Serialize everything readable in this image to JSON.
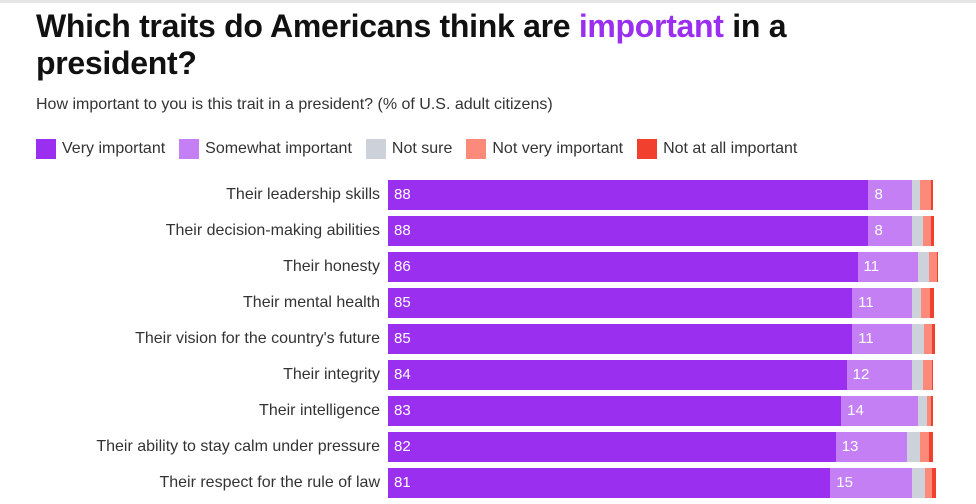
{
  "header": {
    "title_before": "Which traits do Americans think are ",
    "title_highlight": "important",
    "title_after": " in a president?",
    "subtitle": "How important to you is this trait in a president? (% of U.S. adult citizens)"
  },
  "colors": {
    "very_important": "#9b2ff0",
    "somewhat_important": "#c47ff5",
    "not_sure": "#cdd1da",
    "not_very_important": "#fb8a7a",
    "not_at_all_important": "#f2402e",
    "highlight": "#9b2ff0"
  },
  "chart_data": {
    "type": "bar",
    "orientation": "horizontal",
    "stacked": true,
    "title": "Which traits do Americans think are important in a president?",
    "subtitle": "How important to you is this trait in a president? (% of U.S. adult citizens)",
    "xlabel": "",
    "ylabel": "",
    "xlim": [
      0,
      100
    ],
    "grid": false,
    "legend_position": "top-left",
    "categories": [
      "Their leadership skills",
      "Their decision-making abilities",
      "Their honesty",
      "Their mental health",
      "Their vision for the country's future",
      "Their integrity",
      "Their intelligence",
      "Their ability to stay calm under pressure",
      "Their respect for the rule of law"
    ],
    "series": [
      {
        "name": "Very important",
        "key": "very_important",
        "show_labels": true,
        "values": [
          88,
          88,
          86,
          85,
          85,
          84,
          83,
          82,
          81
        ]
      },
      {
        "name": "Somewhat important",
        "key": "somewhat_important",
        "show_labels": true,
        "values": [
          8,
          8,
          11,
          11,
          11,
          12,
          14,
          13,
          15
        ]
      },
      {
        "name": "Not sure",
        "key": "not_sure",
        "show_labels": false,
        "values": [
          1.5,
          2,
          2,
          1.7,
          2.2,
          2,
          1.8,
          2.4,
          2.4
        ]
      },
      {
        "name": "Not very important",
        "key": "not_very_important",
        "show_labels": false,
        "values": [
          2,
          1.5,
          1.6,
          1.5,
          1.5,
          1.6,
          0.6,
          1.6,
          1.3
        ]
      },
      {
        "name": "Not at all important",
        "key": "not_at_all_important",
        "show_labels": false,
        "values": [
          0.4,
          0.5,
          0.2,
          0.8,
          0.5,
          0.2,
          0.4,
          0.8,
          0.6
        ]
      }
    ]
  }
}
